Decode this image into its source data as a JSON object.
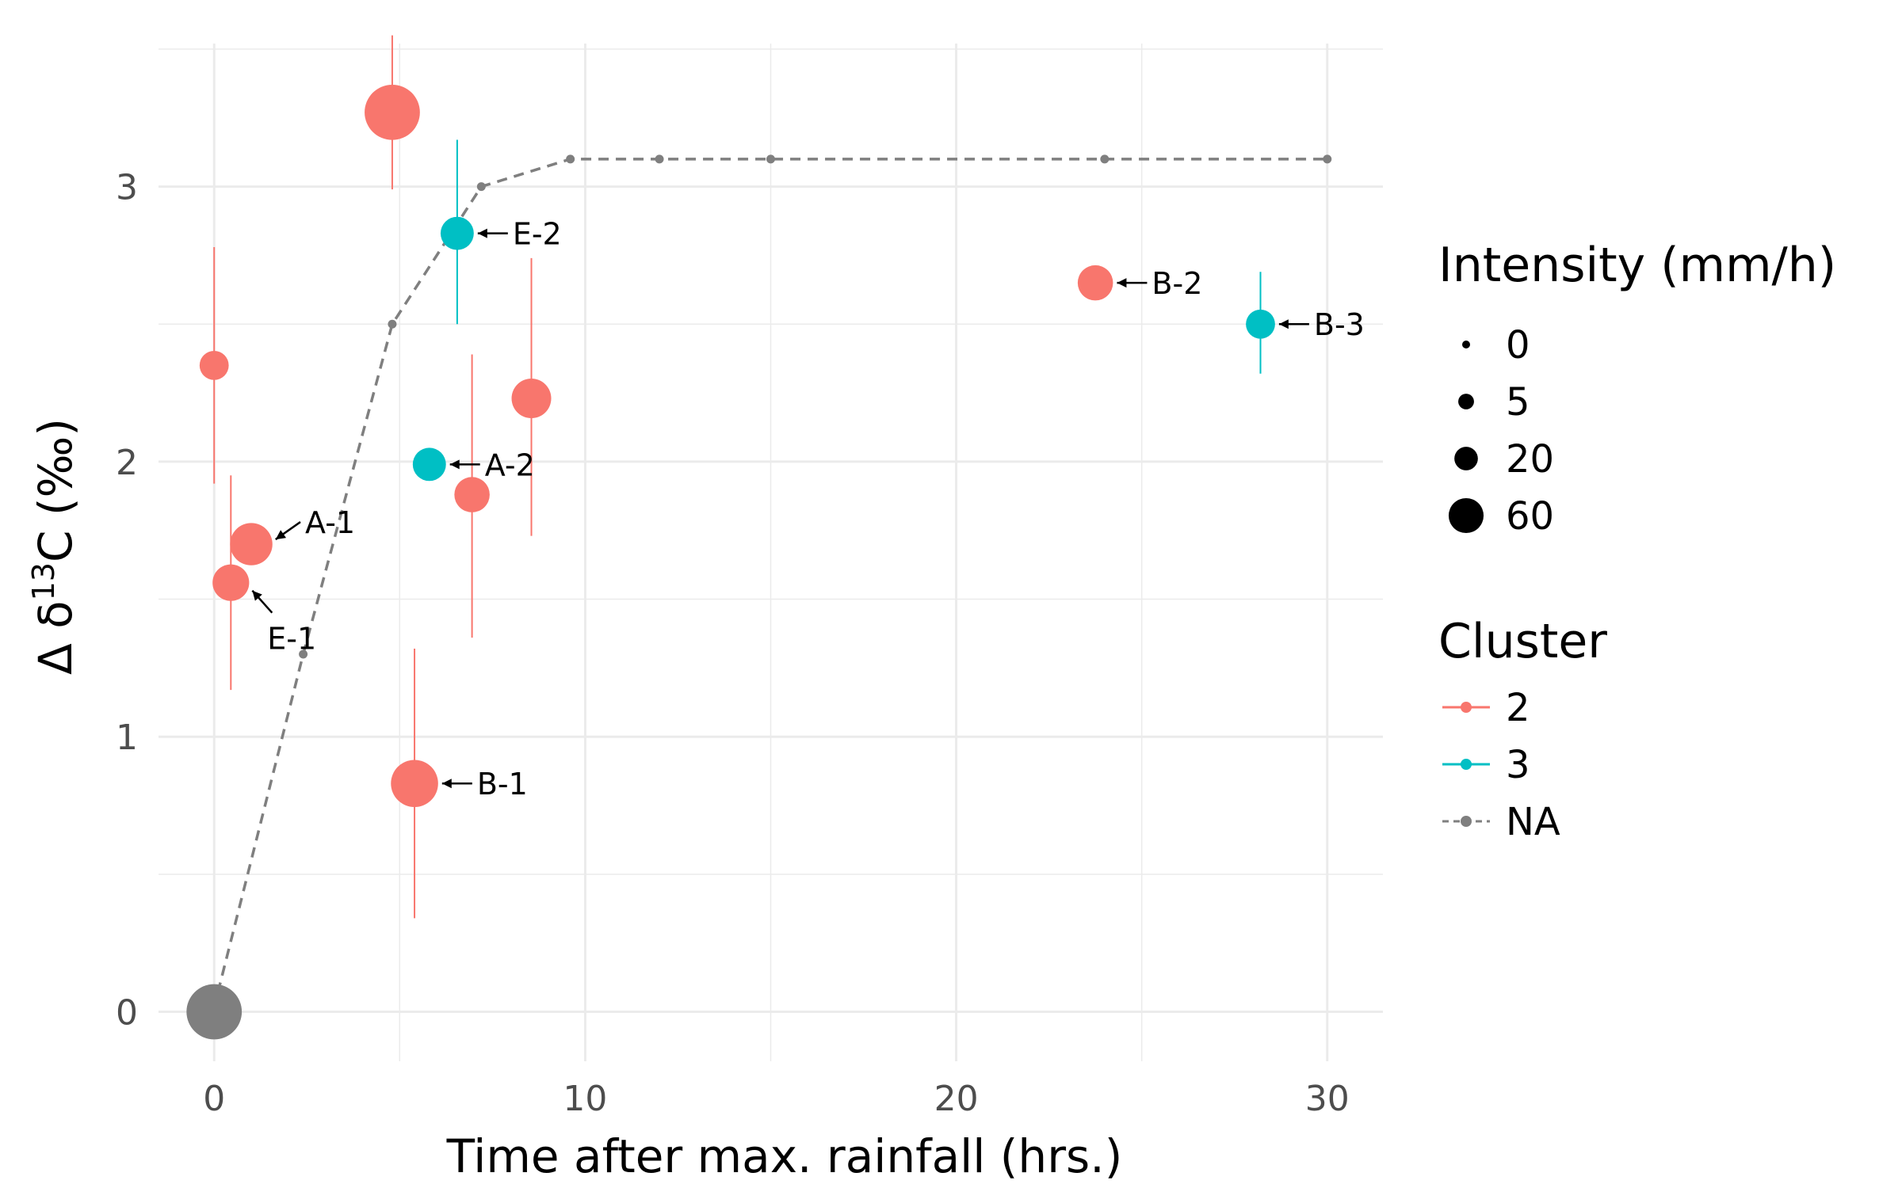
{
  "chart_data": {
    "type": "scatter",
    "xlabel": "Time after max. rainfall (hrs.)",
    "ylabel": "Δ δ13C (‰)",
    "ylabel_parts": {
      "prefix": "Δ δ",
      "sup": "13",
      "suffix": "C (‰)"
    },
    "xlim": [
      -1.5,
      31.5
    ],
    "ylim": [
      -0.18,
      3.52
    ],
    "x_ticks": [
      0,
      10,
      20,
      30
    ],
    "y_ticks": [
      0,
      1,
      2,
      3
    ],
    "grid": true,
    "colors": {
      "2": "#F8766D",
      "3": "#00BFC4",
      "NA": "#7F7F7F"
    },
    "points": [
      {
        "x": 0.0,
        "y": 2.35,
        "err": [
          1.92,
          2.78
        ],
        "cluster": "2",
        "intensity": 10,
        "label": ""
      },
      {
        "x": 1.0,
        "y": 1.7,
        "err": null,
        "cluster": "2",
        "intensity": 30,
        "label": "A-1"
      },
      {
        "x": 0.45,
        "y": 1.56,
        "err": [
          1.17,
          1.95
        ],
        "cluster": "2",
        "intensity": 20,
        "label": "E-1"
      },
      {
        "x": 4.8,
        "y": 3.27,
        "err": [
          2.99,
          3.55
        ],
        "cluster": "2",
        "intensity": 60,
        "label": ""
      },
      {
        "x": 5.4,
        "y": 0.83,
        "err": [
          0.34,
          1.32
        ],
        "cluster": "2",
        "intensity": 40,
        "label": "B-1"
      },
      {
        "x": 6.55,
        "y": 2.83,
        "err": [
          2.5,
          3.17
        ],
        "cluster": "3",
        "intensity": 15,
        "label": "E-2"
      },
      {
        "x": 5.8,
        "y": 1.99,
        "err": null,
        "cluster": "3",
        "intensity": 15,
        "label": "A-2"
      },
      {
        "x": 6.95,
        "y": 1.88,
        "err": [
          1.36,
          2.39
        ],
        "cluster": "2",
        "intensity": 18,
        "label": ""
      },
      {
        "x": 8.55,
        "y": 2.23,
        "err": [
          1.73,
          2.74
        ],
        "cluster": "2",
        "intensity": 25,
        "label": ""
      },
      {
        "x": 23.75,
        "y": 2.65,
        "err": null,
        "cluster": "2",
        "intensity": 18,
        "label": "B-2"
      },
      {
        "x": 28.2,
        "y": 2.5,
        "err": [
          2.32,
          2.69
        ],
        "cluster": "3",
        "intensity": 10,
        "label": "B-3"
      },
      {
        "x": 0.0,
        "y": 0.0,
        "err": null,
        "cluster": "NA",
        "intensity": 60,
        "label": ""
      }
    ],
    "na_line": {
      "x": [
        0.1,
        2.4,
        4.8,
        7.2,
        9.6,
        12.0,
        15.0,
        24.0,
        30.0
      ],
      "y": [
        0.07,
        1.3,
        2.5,
        3.0,
        3.1,
        3.1,
        3.1,
        3.1,
        3.1
      ]
    },
    "legend": {
      "position": "right",
      "intensity": {
        "title": "Intensity  (mm/h)",
        "values": [
          0,
          5,
          20,
          60
        ],
        "labels": [
          "0",
          "5",
          "20",
          "60"
        ]
      },
      "cluster": {
        "title": "Cluster",
        "labels": [
          "2",
          "3",
          "NA"
        ]
      }
    }
  }
}
